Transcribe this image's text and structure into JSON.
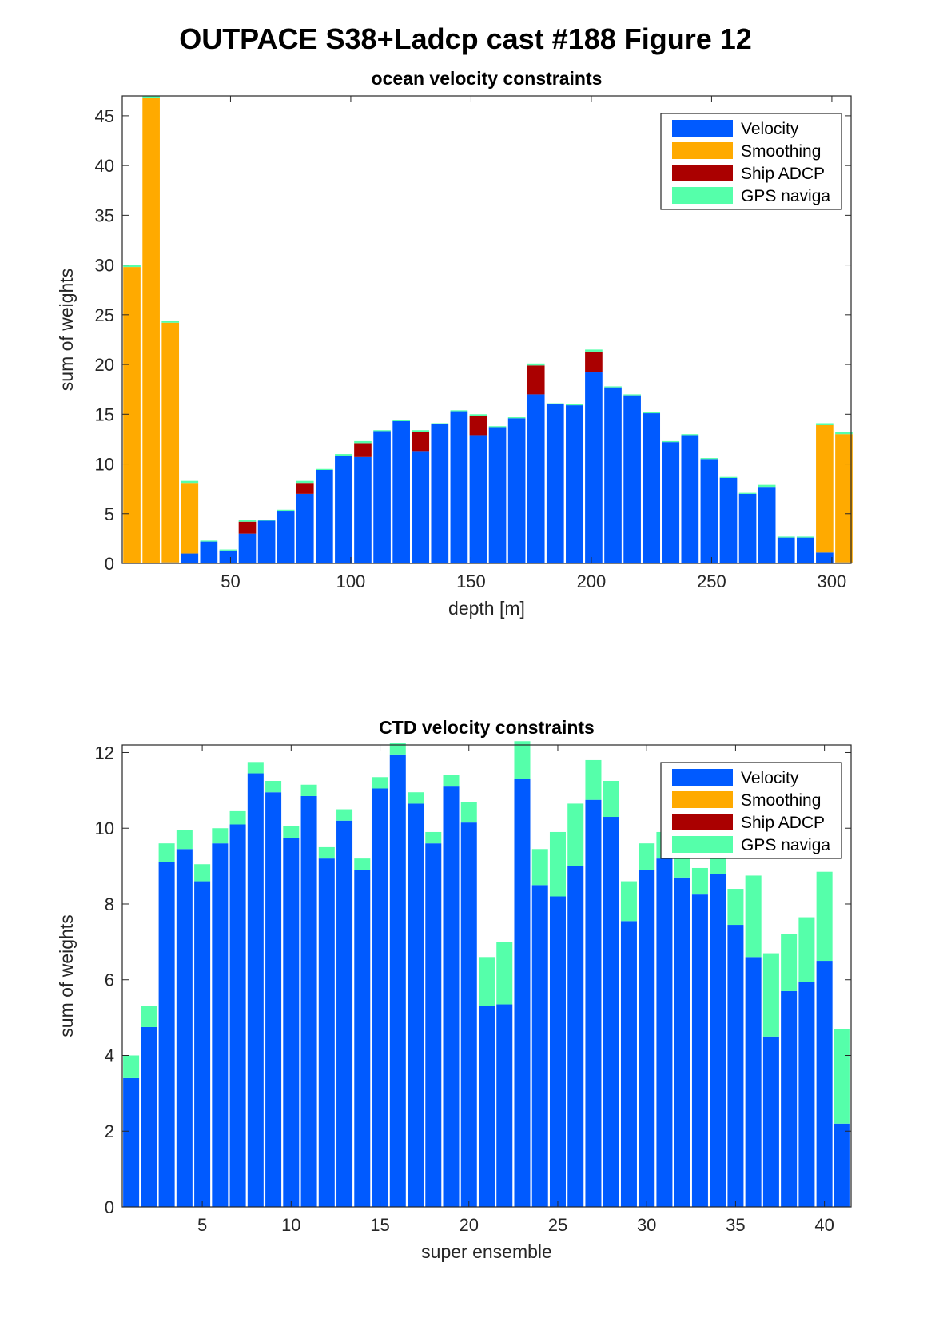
{
  "figure": {
    "title": "OUTPACE S38+Ladcp cast #188  Figure 12"
  },
  "colors": {
    "velocity": "#005AFF",
    "smoothing": "#FFAA00",
    "ship_adcp": "#AA0000",
    "gps": "#55FFAA"
  },
  "chart_data": [
    {
      "type": "bar",
      "stacked": true,
      "title": "ocean velocity constraints",
      "xlabel": "depth [m]",
      "ylabel": "sum of weights",
      "xlim": [
        5,
        308
      ],
      "ylim": [
        0,
        47
      ],
      "xticks": [
        50,
        100,
        150,
        200,
        250,
        300
      ],
      "yticks": [
        0,
        5,
        10,
        15,
        20,
        25,
        30,
        35,
        40,
        45
      ],
      "grid": false,
      "legend_position": "top-right",
      "bar_width": 7.2,
      "x": [
        9,
        17,
        25,
        33,
        41,
        49,
        57,
        65,
        73,
        81,
        89,
        97,
        105,
        113,
        121,
        129,
        137,
        145,
        153,
        161,
        169,
        177,
        185,
        193,
        201,
        209,
        217,
        225,
        233,
        241,
        249,
        257,
        265,
        273,
        281,
        289,
        297,
        305
      ],
      "series": [
        {
          "name": "Velocity",
          "color_key": "velocity",
          "values": [
            0,
            0,
            0.1,
            1.0,
            2.2,
            1.3,
            3.0,
            4.3,
            5.3,
            7.0,
            9.4,
            10.8,
            10.7,
            13.3,
            14.3,
            11.3,
            14.0,
            15.3,
            12.9,
            13.7,
            14.6,
            17.0,
            16.0,
            15.9,
            19.2,
            17.7,
            16.9,
            15.1,
            12.2,
            12.9,
            10.5,
            8.6,
            7.0,
            7.7,
            2.6,
            2.6,
            1.1,
            0.1
          ]
        },
        {
          "name": "Smoothing",
          "color_key": "smoothing",
          "values": [
            29.8,
            46.8,
            24.1,
            7.1,
            0,
            0,
            0,
            0,
            0,
            0,
            0,
            0,
            0,
            0,
            0,
            0,
            0,
            0,
            0,
            0,
            0,
            0,
            0,
            0,
            0,
            0,
            0,
            0,
            0,
            0,
            0,
            0,
            0,
            0,
            0,
            0,
            12.8,
            12.9
          ]
        },
        {
          "name": "Ship ADCP",
          "color_key": "ship_adcp",
          "values": [
            0,
            0,
            0,
            0,
            0,
            0,
            1.2,
            0,
            0,
            1.1,
            0,
            0,
            1.4,
            0,
            0,
            1.9,
            0,
            0,
            1.9,
            0,
            0,
            2.9,
            0,
            0,
            2.1,
            0,
            0,
            0,
            0,
            0,
            0,
            0,
            0,
            0,
            0,
            0,
            0,
            0
          ]
        },
        {
          "name": "GPS naviga",
          "color_key": "gps",
          "values": [
            0.2,
            0.2,
            0.2,
            0.2,
            0.1,
            0.1,
            0.2,
            0.1,
            0.1,
            0.2,
            0.1,
            0.2,
            0.2,
            0.1,
            0.1,
            0.2,
            0.1,
            0.1,
            0.2,
            0.1,
            0.1,
            0.2,
            0.1,
            0.1,
            0.2,
            0.1,
            0.1,
            0.1,
            0.1,
            0.1,
            0.1,
            0.1,
            0.1,
            0.2,
            0.1,
            0.1,
            0.2,
            0.2
          ]
        }
      ]
    },
    {
      "type": "bar",
      "stacked": true,
      "title": "CTD velocity constraints",
      "xlabel": "super ensemble",
      "ylabel": "sum of weights",
      "xlim": [
        0.5,
        41.5
      ],
      "ylim": [
        0,
        12.2
      ],
      "xticks": [
        5,
        10,
        15,
        20,
        25,
        30,
        35,
        40
      ],
      "yticks": [
        0,
        2,
        4,
        6,
        8,
        10,
        12
      ],
      "grid": false,
      "legend_position": "top-right",
      "bar_width": 0.9,
      "x": [
        1,
        2,
        3,
        4,
        5,
        6,
        7,
        8,
        9,
        10,
        11,
        12,
        13,
        14,
        15,
        16,
        17,
        18,
        19,
        20,
        21,
        22,
        23,
        24,
        25,
        26,
        27,
        28,
        29,
        30,
        31,
        32,
        33,
        34,
        35,
        36,
        37,
        38,
        39,
        40,
        41
      ],
      "series": [
        {
          "name": "Velocity",
          "color_key": "velocity",
          "values": [
            3.4,
            4.75,
            9.1,
            9.45,
            8.6,
            9.6,
            10.1,
            11.45,
            10.95,
            9.75,
            10.85,
            9.2,
            10.2,
            8.9,
            11.05,
            11.95,
            10.65,
            9.6,
            11.1,
            10.15,
            5.3,
            5.35,
            11.3,
            8.5,
            8.2,
            9.0,
            10.75,
            10.3,
            7.55,
            8.9,
            9.2,
            8.7,
            8.25,
            8.8,
            7.45,
            6.6,
            4.5,
            5.7,
            5.95,
            6.5,
            2.2
          ]
        },
        {
          "name": "Smoothing",
          "color_key": "smoothing",
          "values": [
            0,
            0,
            0,
            0,
            0,
            0,
            0,
            0,
            0,
            0,
            0,
            0,
            0,
            0,
            0,
            0,
            0,
            0,
            0,
            0,
            0,
            0,
            0,
            0,
            0,
            0,
            0,
            0,
            0,
            0,
            0,
            0,
            0,
            0,
            0,
            0,
            0,
            0,
            0,
            0,
            0
          ]
        },
        {
          "name": "Ship ADCP",
          "color_key": "ship_adcp",
          "values": [
            0,
            0,
            0,
            0,
            0,
            0,
            0,
            0,
            0,
            0,
            0,
            0,
            0,
            0,
            0,
            0,
            0,
            0,
            0,
            0,
            0,
            0,
            0,
            0,
            0,
            0,
            0,
            0,
            0,
            0,
            0,
            0,
            0,
            0,
            0,
            0,
            0,
            0,
            0,
            0,
            0
          ]
        },
        {
          "name": "GPS naviga",
          "color_key": "gps",
          "values": [
            0.6,
            0.55,
            0.5,
            0.5,
            0.45,
            0.4,
            0.35,
            0.3,
            0.3,
            0.3,
            0.3,
            0.3,
            0.3,
            0.3,
            0.3,
            0.3,
            0.3,
            0.3,
            0.3,
            0.55,
            1.3,
            1.65,
            1.0,
            0.95,
            1.7,
            1.65,
            1.05,
            0.95,
            1.05,
            0.7,
            0.7,
            0.6,
            0.7,
            0.6,
            0.95,
            2.15,
            2.2,
            1.5,
            1.7,
            2.35,
            2.5
          ]
        }
      ]
    }
  ]
}
